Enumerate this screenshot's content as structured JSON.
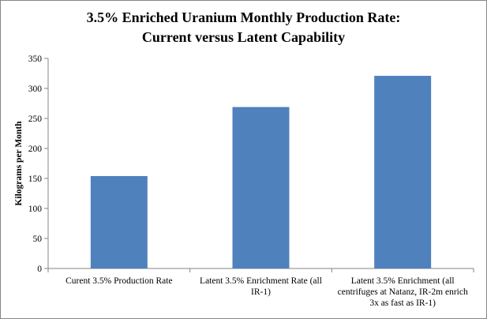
{
  "chart_data": {
    "type": "bar",
    "title_lines": [
      "3.5% Enriched Uranium Monthly Production Rate:",
      "Current versus Latent Capability"
    ],
    "xlabel": "",
    "ylabel": "Kilograms per Month",
    "categories": [
      "Curent 3.5% Production Rate",
      "Latent 3.5% Enrichment Rate (all IR-1)",
      "Latent 3.5% Enrichment (all centrifuges at Natanz, IR-2m enrich 3x as fast as IR-1)"
    ],
    "values": [
      154,
      269,
      321
    ],
    "ylim": [
      0,
      350
    ],
    "yticks": [
      0,
      50,
      100,
      150,
      200,
      250,
      300,
      350
    ],
    "grid": false,
    "legend": "none",
    "bar_color": "#4f81bd"
  }
}
